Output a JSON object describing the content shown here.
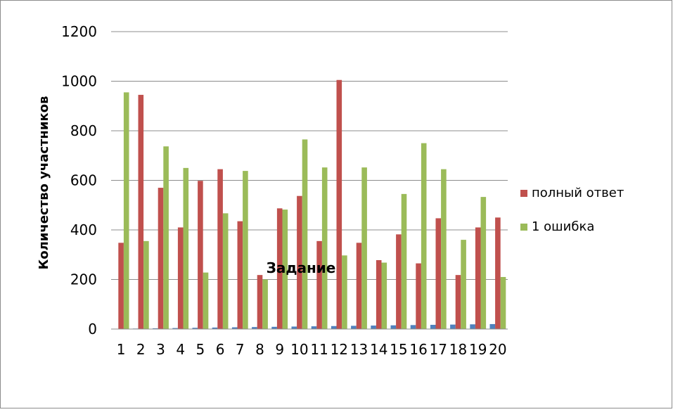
{
  "chart_data": {
    "type": "bar",
    "title": "",
    "xlabel": "Задание",
    "ylabel": "Количество участников",
    "ylim": [
      0,
      1200
    ],
    "yticks": [
      0,
      200,
      400,
      600,
      800,
      1000,
      1200
    ],
    "grid": true,
    "legend_position": "right",
    "categories": [
      "1",
      "2",
      "3",
      "4",
      "5",
      "6",
      "7",
      "8",
      "9",
      "10",
      "11",
      "12",
      "13",
      "14",
      "15",
      "16",
      "17",
      "18",
      "19",
      "20"
    ],
    "series": [
      {
        "color": "#4F81BD",
        "values": [
          1,
          2,
          3,
          4,
          5,
          6,
          7,
          8,
          9,
          10,
          11,
          12,
          13,
          14,
          15,
          16,
          17,
          18,
          19,
          20
        ]
      },
      {
        "name": "полный ответ",
        "color": "#C0504D",
        "values": [
          348,
          945,
          570,
          410,
          598,
          645,
          435,
          218,
          487,
          537,
          355,
          1005,
          348,
          278,
          382,
          265,
          447,
          218,
          410,
          450
        ]
      },
      {
        "name": "1 ошибка",
        "color": "#9BBB59",
        "values": [
          955,
          355,
          737,
          650,
          228,
          467,
          638,
          200,
          482,
          765,
          652,
          297,
          652,
          268,
          545,
          750,
          645,
          360,
          533,
          210
        ]
      }
    ]
  }
}
